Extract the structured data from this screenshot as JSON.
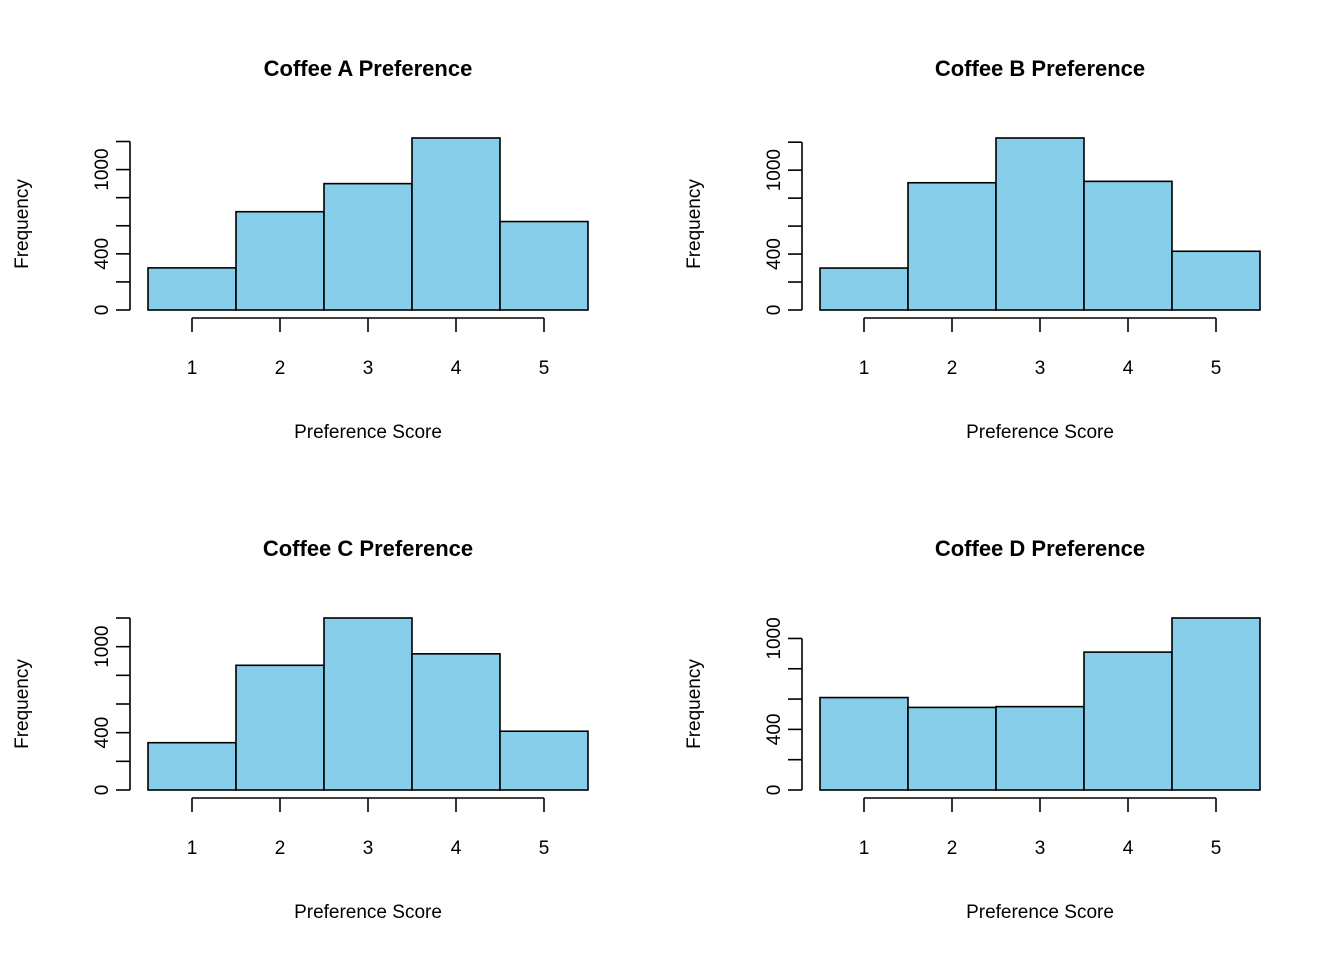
{
  "chart_data": [
    {
      "type": "bar",
      "title": "Coffee A Preference",
      "xlabel": "Preference Score",
      "ylabel": "Frequency",
      "categories": [
        "1",
        "2",
        "3",
        "4",
        "5"
      ],
      "values": [
        300,
        700,
        900,
        1225,
        630
      ],
      "xlim": [
        0.5,
        5.5
      ],
      "ylim": [
        0,
        1225
      ],
      "x_ticks": [
        "1",
        "2",
        "3",
        "4",
        "5"
      ],
      "y_ticks": [
        0,
        200,
        400,
        600,
        800,
        1000,
        1200
      ],
      "y_tick_labels": [
        "0",
        "",
        "400",
        "",
        "",
        "1000",
        ""
      ],
      "bar_color": "#87CEEB",
      "grid": false
    },
    {
      "type": "bar",
      "title": "Coffee B Preference",
      "xlabel": "Preference Score",
      "ylabel": "Frequency",
      "categories": [
        "1",
        "2",
        "3",
        "4",
        "5"
      ],
      "values": [
        300,
        910,
        1230,
        920,
        420
      ],
      "xlim": [
        0.5,
        5.5
      ],
      "ylim": [
        0,
        1230
      ],
      "x_ticks": [
        "1",
        "2",
        "3",
        "4",
        "5"
      ],
      "y_ticks": [
        0,
        200,
        400,
        600,
        800,
        1000,
        1200
      ],
      "y_tick_labels": [
        "0",
        "",
        "400",
        "",
        "",
        "1000",
        ""
      ],
      "bar_color": "#87CEEB",
      "grid": false
    },
    {
      "type": "bar",
      "title": "Coffee C Preference",
      "xlabel": "Preference Score",
      "ylabel": "Frequency",
      "categories": [
        "1",
        "2",
        "3",
        "4",
        "5"
      ],
      "values": [
        330,
        870,
        1200,
        950,
        410
      ],
      "xlim": [
        0.5,
        5.5
      ],
      "ylim": [
        0,
        1200
      ],
      "x_ticks": [
        "1",
        "2",
        "3",
        "4",
        "5"
      ],
      "y_ticks": [
        0,
        200,
        400,
        600,
        800,
        1000,
        1200
      ],
      "y_tick_labels": [
        "0",
        "",
        "400",
        "",
        "",
        "1000",
        ""
      ],
      "bar_color": "#87CEEB",
      "grid": false
    },
    {
      "type": "bar",
      "title": "Coffee D Preference",
      "xlabel": "Preference Score",
      "ylabel": "Frequency",
      "categories": [
        "1",
        "2",
        "3",
        "4",
        "5"
      ],
      "values": [
        610,
        545,
        550,
        910,
        1135
      ],
      "xlim": [
        0.5,
        5.5
      ],
      "ylim": [
        0,
        1135
      ],
      "x_ticks": [
        "1",
        "2",
        "3",
        "4",
        "5"
      ],
      "y_ticks": [
        0,
        200,
        400,
        600,
        800,
        1000
      ],
      "y_tick_labels": [
        "0",
        "",
        "400",
        "",
        "",
        "1000"
      ],
      "bar_color": "#87CEEB",
      "grid": false
    }
  ]
}
